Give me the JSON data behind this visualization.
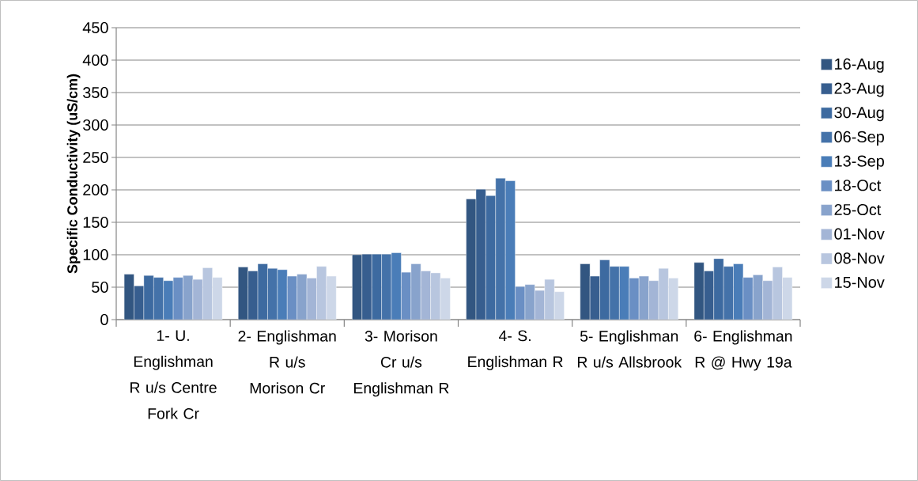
{
  "chart_data": {
    "type": "bar",
    "ylabel": "Specific Conductivity (uS/cm)",
    "categories": [
      "1- U. Englishman R u/s Centre Fork Cr",
      "2- Englishman R u/s Morison Cr",
      "3- Morison Cr u/s Englishman R",
      "4- S. Englishman R",
      "5- Englishman R u/s Allsbrook",
      "6- Englishman R @ Hwy 19a"
    ],
    "series": [
      {
        "name": "16-Aug",
        "color": "#325681",
        "values": [
          70,
          81,
          100,
          186,
          86,
          88
        ]
      },
      {
        "name": "23-Aug",
        "color": "#375e8f",
        "values": [
          52,
          75,
          101,
          201,
          67,
          75
        ]
      },
      {
        "name": "30-Aug",
        "color": "#3d6aa0",
        "values": [
          68,
          86,
          101,
          191,
          92,
          94
        ]
      },
      {
        "name": "06-Sep",
        "color": "#4472a9",
        "values": [
          65,
          79,
          101,
          218,
          82,
          82
        ]
      },
      {
        "name": "13-Sep",
        "color": "#4a7db8",
        "values": [
          60,
          77,
          103,
          214,
          82,
          86
        ]
      },
      {
        "name": "18-Oct",
        "color": "#6a8fc4",
        "values": [
          65,
          67,
          73,
          51,
          64,
          65
        ]
      },
      {
        "name": "25-Oct",
        "color": "#88a3cc",
        "values": [
          68,
          70,
          86,
          54,
          67,
          69
        ]
      },
      {
        "name": "01-Nov",
        "color": "#a3b5d6",
        "values": [
          62,
          64,
          75,
          45,
          60,
          60
        ]
      },
      {
        "name": "08-Nov",
        "color": "#b8c6df",
        "values": [
          80,
          82,
          72,
          62,
          79,
          81
        ]
      },
      {
        "name": "15-Nov",
        "color": "#cdd7e8",
        "values": [
          65,
          67,
          64,
          43,
          64,
          65
        ]
      }
    ],
    "ylim": [
      0,
      450
    ],
    "yticks": [
      0,
      50,
      100,
      150,
      200,
      250,
      300,
      350,
      400,
      450
    ],
    "grid": "y",
    "legend": "right"
  }
}
